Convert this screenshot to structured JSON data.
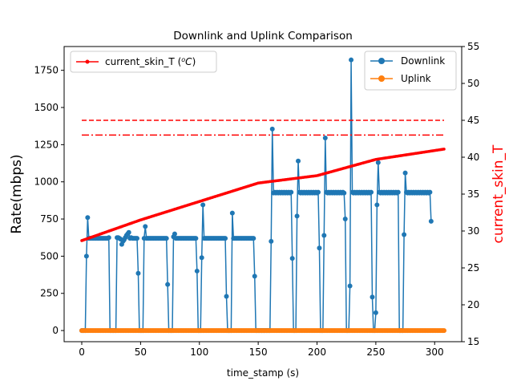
{
  "chart_data": {
    "type": "line",
    "title": "Downlink and Uplink Comparison",
    "xlabel": "time_stamp (s)",
    "ylabel_left": "Rate(mbps)",
    "ylabel_right": "current_skin_T",
    "xlim": [
      -15,
      323
    ],
    "ylim_left": [
      -75,
      1910
    ],
    "ylim_right": [
      15,
      55
    ],
    "x_ticks": [
      0,
      50,
      100,
      150,
      200,
      250,
      300
    ],
    "y_left_ticks": [
      0,
      250,
      500,
      750,
      1000,
      1250,
      1500,
      1750
    ],
    "y_right_ticks": [
      15,
      20,
      25,
      30,
      35,
      40,
      45,
      50,
      55
    ],
    "colors": {
      "downlink": "#1f77b4",
      "uplink": "#ff7f0e",
      "skin_temp": "#ff0000",
      "right_axis_label": "#ff0000"
    },
    "legend_left": {
      "label": "current_skin_T (",
      "label_math_base": "o",
      "label_math_unit": "C",
      "label_close": ")"
    },
    "legend_right": {
      "entries": [
        "Downlink",
        "Uplink"
      ]
    },
    "thresholds_right_axis": [
      {
        "value": 45,
        "style": "dashed"
      },
      {
        "value": 43,
        "style": "dashdot"
      }
    ],
    "downlink_points": [
      [
        0,
        0
      ],
      [
        1,
        0
      ],
      [
        2,
        0
      ],
      [
        3,
        0
      ],
      [
        4,
        500
      ],
      [
        5,
        760
      ],
      [
        6,
        620
      ],
      [
        7,
        620
      ],
      [
        8,
        620
      ],
      [
        9,
        620
      ],
      [
        10,
        620
      ],
      [
        11,
        620
      ],
      [
        12,
        620
      ],
      [
        13,
        620
      ],
      [
        14,
        620
      ],
      [
        15,
        620
      ],
      [
        16,
        620
      ],
      [
        17,
        620
      ],
      [
        18,
        620
      ],
      [
        19,
        620
      ],
      [
        20,
        620
      ],
      [
        21,
        620
      ],
      [
        22,
        620
      ],
      [
        23,
        625
      ],
      [
        24,
        0
      ],
      [
        25,
        0
      ],
      [
        26,
        0
      ],
      [
        27,
        0
      ],
      [
        28,
        0
      ],
      [
        29,
        0
      ],
      [
        30,
        625
      ],
      [
        31,
        625
      ],
      [
        32,
        620
      ],
      [
        33,
        615
      ],
      [
        34,
        580
      ],
      [
        35,
        600
      ],
      [
        36,
        610
      ],
      [
        37,
        625
      ],
      [
        38,
        640
      ],
      [
        39,
        650
      ],
      [
        40,
        660
      ],
      [
        41,
        620
      ],
      [
        42,
        625
      ],
      [
        43,
        620
      ],
      [
        44,
        620
      ],
      [
        45,
        620
      ],
      [
        46,
        620
      ],
      [
        47,
        620
      ],
      [
        48,
        385
      ],
      [
        49,
        0
      ],
      [
        50,
        0
      ],
      [
        51,
        0
      ],
      [
        52,
        0
      ],
      [
        53,
        620
      ],
      [
        54,
        700
      ],
      [
        55,
        620
      ],
      [
        56,
        620
      ],
      [
        57,
        620
      ],
      [
        58,
        620
      ],
      [
        59,
        620
      ],
      [
        60,
        620
      ],
      [
        61,
        620
      ],
      [
        62,
        620
      ],
      [
        63,
        620
      ],
      [
        64,
        620
      ],
      [
        65,
        620
      ],
      [
        66,
        620
      ],
      [
        67,
        620
      ],
      [
        68,
        620
      ],
      [
        69,
        620
      ],
      [
        70,
        620
      ],
      [
        71,
        620
      ],
      [
        72,
        620
      ],
      [
        73,
        310
      ],
      [
        74,
        0
      ],
      [
        75,
        0
      ],
      [
        76,
        0
      ],
      [
        77,
        0
      ],
      [
        78,
        630
      ],
      [
        79,
        650
      ],
      [
        80,
        620
      ],
      [
        81,
        620
      ],
      [
        82,
        620
      ],
      [
        83,
        620
      ],
      [
        84,
        620
      ],
      [
        85,
        620
      ],
      [
        86,
        620
      ],
      [
        87,
        620
      ],
      [
        88,
        620
      ],
      [
        89,
        620
      ],
      [
        90,
        620
      ],
      [
        91,
        620
      ],
      [
        92,
        620
      ],
      [
        93,
        620
      ],
      [
        94,
        620
      ],
      [
        95,
        620
      ],
      [
        96,
        620
      ],
      [
        97,
        620
      ],
      [
        98,
        400
      ],
      [
        99,
        0
      ],
      [
        100,
        0
      ],
      [
        101,
        0
      ],
      [
        102,
        490
      ],
      [
        103,
        845
      ],
      [
        104,
        620
      ],
      [
        105,
        620
      ],
      [
        106,
        620
      ],
      [
        107,
        620
      ],
      [
        108,
        620
      ],
      [
        109,
        620
      ],
      [
        110,
        620
      ],
      [
        111,
        620
      ],
      [
        112,
        620
      ],
      [
        113,
        620
      ],
      [
        114,
        620
      ],
      [
        115,
        620
      ],
      [
        116,
        620
      ],
      [
        117,
        620
      ],
      [
        118,
        620
      ],
      [
        119,
        620
      ],
      [
        120,
        620
      ],
      [
        121,
        620
      ],
      [
        122,
        620
      ],
      [
        123,
        230
      ],
      [
        124,
        0
      ],
      [
        125,
        0
      ],
      [
        126,
        0
      ],
      [
        127,
        0
      ],
      [
        128,
        790
      ],
      [
        129,
        620
      ],
      [
        130,
        620
      ],
      [
        131,
        620
      ],
      [
        132,
        620
      ],
      [
        133,
        620
      ],
      [
        134,
        620
      ],
      [
        135,
        620
      ],
      [
        136,
        620
      ],
      [
        137,
        620
      ],
      [
        138,
        620
      ],
      [
        139,
        620
      ],
      [
        140,
        620
      ],
      [
        141,
        620
      ],
      [
        142,
        620
      ],
      [
        143,
        620
      ],
      [
        144,
        620
      ],
      [
        145,
        620
      ],
      [
        146,
        620
      ],
      [
        147,
        365
      ],
      [
        148,
        0
      ],
      [
        149,
        0
      ],
      [
        150,
        0
      ],
      [
        151,
        0
      ],
      [
        152,
        0
      ],
      [
        153,
        0
      ],
      [
        154,
        0
      ],
      [
        155,
        0
      ],
      [
        156,
        0
      ],
      [
        157,
        0
      ],
      [
        158,
        0
      ],
      [
        159,
        0
      ],
      [
        160,
        0
      ],
      [
        161,
        600
      ],
      [
        162,
        1355
      ],
      [
        163,
        925
      ],
      [
        164,
        930
      ],
      [
        165,
        925
      ],
      [
        166,
        930
      ],
      [
        167,
        925
      ],
      [
        168,
        930
      ],
      [
        169,
        925
      ],
      [
        170,
        930
      ],
      [
        171,
        925
      ],
      [
        172,
        930
      ],
      [
        173,
        925
      ],
      [
        174,
        930
      ],
      [
        175,
        925
      ],
      [
        176,
        930
      ],
      [
        177,
        925
      ],
      [
        178,
        930
      ],
      [
        179,
        485
      ],
      [
        180,
        0
      ],
      [
        181,
        0
      ],
      [
        182,
        0
      ],
      [
        183,
        770
      ],
      [
        184,
        1140
      ],
      [
        185,
        930
      ],
      [
        186,
        925
      ],
      [
        187,
        930
      ],
      [
        188,
        925
      ],
      [
        189,
        930
      ],
      [
        190,
        925
      ],
      [
        191,
        930
      ],
      [
        192,
        925
      ],
      [
        193,
        930
      ],
      [
        194,
        925
      ],
      [
        195,
        930
      ],
      [
        196,
        925
      ],
      [
        197,
        930
      ],
      [
        198,
        925
      ],
      [
        199,
        930
      ],
      [
        200,
        925
      ],
      [
        201,
        930
      ],
      [
        202,
        555
      ],
      [
        203,
        0
      ],
      [
        204,
        0
      ],
      [
        205,
        0
      ],
      [
        206,
        640
      ],
      [
        207,
        1295
      ],
      [
        208,
        930
      ],
      [
        209,
        925
      ],
      [
        210,
        930
      ],
      [
        211,
        925
      ],
      [
        212,
        930
      ],
      [
        213,
        925
      ],
      [
        214,
        930
      ],
      [
        215,
        925
      ],
      [
        216,
        930
      ],
      [
        217,
        925
      ],
      [
        218,
        930
      ],
      [
        219,
        925
      ],
      [
        220,
        930
      ],
      [
        221,
        925
      ],
      [
        222,
        930
      ],
      [
        223,
        925
      ],
      [
        224,
        750
      ],
      [
        225,
        0
      ],
      [
        226,
        0
      ],
      [
        227,
        0
      ],
      [
        228,
        300
      ],
      [
        229,
        1820
      ],
      [
        230,
        930
      ],
      [
        231,
        925
      ],
      [
        232,
        930
      ],
      [
        233,
        925
      ],
      [
        234,
        930
      ],
      [
        235,
        925
      ],
      [
        236,
        930
      ],
      [
        237,
        925
      ],
      [
        238,
        930
      ],
      [
        239,
        925
      ],
      [
        240,
        930
      ],
      [
        241,
        925
      ],
      [
        242,
        930
      ],
      [
        243,
        925
      ],
      [
        244,
        930
      ],
      [
        245,
        925
      ],
      [
        246,
        930
      ],
      [
        247,
        225
      ],
      [
        248,
        0
      ],
      [
        249,
        0
      ],
      [
        250,
        120
      ],
      [
        251,
        845
      ],
      [
        252,
        1130
      ],
      [
        253,
        930
      ],
      [
        254,
        925
      ],
      [
        255,
        930
      ],
      [
        256,
        925
      ],
      [
        257,
        930
      ],
      [
        258,
        925
      ],
      [
        259,
        930
      ],
      [
        260,
        925
      ],
      [
        261,
        930
      ],
      [
        262,
        925
      ],
      [
        263,
        930
      ],
      [
        264,
        925
      ],
      [
        265,
        930
      ],
      [
        266,
        925
      ],
      [
        267,
        930
      ],
      [
        268,
        925
      ],
      [
        269,
        930
      ],
      [
        270,
        0
      ],
      [
        271,
        0
      ],
      [
        272,
        0
      ],
      [
        273,
        0
      ],
      [
        274,
        645
      ],
      [
        275,
        1060
      ],
      [
        276,
        930
      ],
      [
        277,
        925
      ],
      [
        278,
        930
      ],
      [
        279,
        925
      ],
      [
        280,
        930
      ],
      [
        281,
        925
      ],
      [
        282,
        930
      ],
      [
        283,
        925
      ],
      [
        284,
        930
      ],
      [
        285,
        925
      ],
      [
        286,
        930
      ],
      [
        287,
        925
      ],
      [
        288,
        930
      ],
      [
        289,
        925
      ],
      [
        290,
        930
      ],
      [
        291,
        925
      ],
      [
        292,
        930
      ],
      [
        293,
        925
      ],
      [
        294,
        930
      ],
      [
        295,
        925
      ],
      [
        296,
        930
      ],
      [
        297,
        735
      ]
    ],
    "uplink": {
      "x_start": 0,
      "x_end": 308,
      "value": 0
    },
    "skin_temp": {
      "x_start": 0,
      "x_end": 308,
      "y_start": 28.7,
      "knots": [
        [
          0,
          28.7
        ],
        [
          50,
          31.5
        ],
        [
          100,
          34
        ],
        [
          150,
          36.5
        ],
        [
          200,
          37.5
        ],
        [
          250,
          39.7
        ],
        [
          308,
          41.1
        ]
      ]
    }
  }
}
